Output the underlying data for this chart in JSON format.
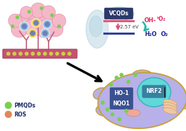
{
  "bg_color": "#ffffff",
  "vcqds_label": "VCQDs",
  "energy_label": "2.57 eV",
  "oh_label": "OH-",
  "o2_singlet_label": "¹O₂",
  "h2o_label": "H₂O",
  "o2_label": "O₂",
  "pmqds_label": "PMQDs",
  "ros_label": "ROS",
  "ho1_label": "HO-1",
  "nqo1_label": "NQO1",
  "nrf2_label": "NRF2",
  "upper_line_color": "#e05878",
  "lower_line_color": "#3040a0",
  "arrow_color": "#d05878",
  "teal_arrow_color": "#20b8a8",
  "vcqds_box_color": "#2a3a6a",
  "vcqds_glow_color": "#a0c8d8",
  "oh_color": "#e02860",
  "h2o_color": "#1a2090",
  "pmqd_dot_color": "#78d050",
  "ros_dot_color": "#e08858",
  "cell_fill_color": "#b8b0e8",
  "cell_gradient_color": "#c8c0f0",
  "cell_border_color": "#c8a030",
  "nucleus_color": "#60d8d8",
  "nucleus_border": "#38b0b8",
  "ho1_box_color": "#3a5090",
  "nrf2_box_color": "#3880a0",
  "legend_text_color": "#1a2a6a",
  "tumor_main_color": "#f0a8b8",
  "tumor_blob_color": "#f5b8c8",
  "tumor_dark_color": "#d07890",
  "vessel_color": "#c85070",
  "vessel_dot_color": "#c8d048",
  "cell_blue": "#90c8e8",
  "cell_yellow": "#f0d050",
  "cell_nucleus_color": "#7080b8",
  "tree_branch_color": "#c06080",
  "mito_color": "#f0a898"
}
